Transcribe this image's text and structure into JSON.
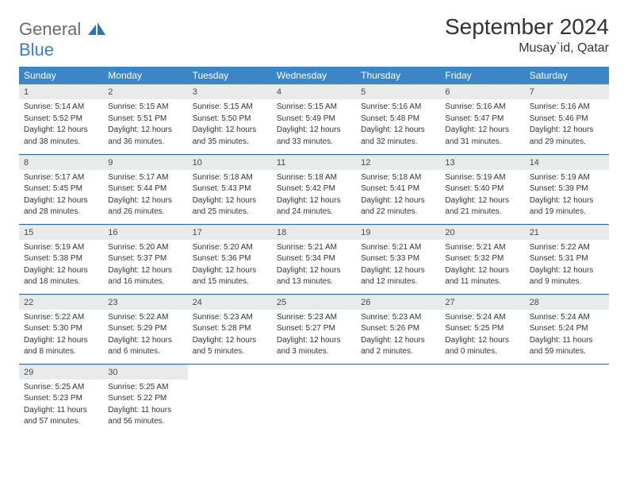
{
  "brand": {
    "text1": "General",
    "text2": "Blue"
  },
  "title": "September 2024",
  "location": "Musay`id, Qatar",
  "colors": {
    "header_bg": "#3b86c7",
    "header_text": "#ffffff",
    "daynum_bg": "#e9eaec",
    "row_border": "#3b6a94",
    "brand_gray": "#6b6b6b",
    "brand_blue": "#3b7fc4"
  },
  "weekdays": [
    "Sunday",
    "Monday",
    "Tuesday",
    "Wednesday",
    "Thursday",
    "Friday",
    "Saturday"
  ],
  "weeks": [
    [
      {
        "n": "1",
        "sr": "Sunrise: 5:14 AM",
        "ss": "Sunset: 5:52 PM",
        "dl1": "Daylight: 12 hours",
        "dl2": "and 38 minutes."
      },
      {
        "n": "2",
        "sr": "Sunrise: 5:15 AM",
        "ss": "Sunset: 5:51 PM",
        "dl1": "Daylight: 12 hours",
        "dl2": "and 36 minutes."
      },
      {
        "n": "3",
        "sr": "Sunrise: 5:15 AM",
        "ss": "Sunset: 5:50 PM",
        "dl1": "Daylight: 12 hours",
        "dl2": "and 35 minutes."
      },
      {
        "n": "4",
        "sr": "Sunrise: 5:15 AM",
        "ss": "Sunset: 5:49 PM",
        "dl1": "Daylight: 12 hours",
        "dl2": "and 33 minutes."
      },
      {
        "n": "5",
        "sr": "Sunrise: 5:16 AM",
        "ss": "Sunset: 5:48 PM",
        "dl1": "Daylight: 12 hours",
        "dl2": "and 32 minutes."
      },
      {
        "n": "6",
        "sr": "Sunrise: 5:16 AM",
        "ss": "Sunset: 5:47 PM",
        "dl1": "Daylight: 12 hours",
        "dl2": "and 31 minutes."
      },
      {
        "n": "7",
        "sr": "Sunrise: 5:16 AM",
        "ss": "Sunset: 5:46 PM",
        "dl1": "Daylight: 12 hours",
        "dl2": "and 29 minutes."
      }
    ],
    [
      {
        "n": "8",
        "sr": "Sunrise: 5:17 AM",
        "ss": "Sunset: 5:45 PM",
        "dl1": "Daylight: 12 hours",
        "dl2": "and 28 minutes."
      },
      {
        "n": "9",
        "sr": "Sunrise: 5:17 AM",
        "ss": "Sunset: 5:44 PM",
        "dl1": "Daylight: 12 hours",
        "dl2": "and 26 minutes."
      },
      {
        "n": "10",
        "sr": "Sunrise: 5:18 AM",
        "ss": "Sunset: 5:43 PM",
        "dl1": "Daylight: 12 hours",
        "dl2": "and 25 minutes."
      },
      {
        "n": "11",
        "sr": "Sunrise: 5:18 AM",
        "ss": "Sunset: 5:42 PM",
        "dl1": "Daylight: 12 hours",
        "dl2": "and 24 minutes."
      },
      {
        "n": "12",
        "sr": "Sunrise: 5:18 AM",
        "ss": "Sunset: 5:41 PM",
        "dl1": "Daylight: 12 hours",
        "dl2": "and 22 minutes."
      },
      {
        "n": "13",
        "sr": "Sunrise: 5:19 AM",
        "ss": "Sunset: 5:40 PM",
        "dl1": "Daylight: 12 hours",
        "dl2": "and 21 minutes."
      },
      {
        "n": "14",
        "sr": "Sunrise: 5:19 AM",
        "ss": "Sunset: 5:39 PM",
        "dl1": "Daylight: 12 hours",
        "dl2": "and 19 minutes."
      }
    ],
    [
      {
        "n": "15",
        "sr": "Sunrise: 5:19 AM",
        "ss": "Sunset: 5:38 PM",
        "dl1": "Daylight: 12 hours",
        "dl2": "and 18 minutes."
      },
      {
        "n": "16",
        "sr": "Sunrise: 5:20 AM",
        "ss": "Sunset: 5:37 PM",
        "dl1": "Daylight: 12 hours",
        "dl2": "and 16 minutes."
      },
      {
        "n": "17",
        "sr": "Sunrise: 5:20 AM",
        "ss": "Sunset: 5:36 PM",
        "dl1": "Daylight: 12 hours",
        "dl2": "and 15 minutes."
      },
      {
        "n": "18",
        "sr": "Sunrise: 5:21 AM",
        "ss": "Sunset: 5:34 PM",
        "dl1": "Daylight: 12 hours",
        "dl2": "and 13 minutes."
      },
      {
        "n": "19",
        "sr": "Sunrise: 5:21 AM",
        "ss": "Sunset: 5:33 PM",
        "dl1": "Daylight: 12 hours",
        "dl2": "and 12 minutes."
      },
      {
        "n": "20",
        "sr": "Sunrise: 5:21 AM",
        "ss": "Sunset: 5:32 PM",
        "dl1": "Daylight: 12 hours",
        "dl2": "and 11 minutes."
      },
      {
        "n": "21",
        "sr": "Sunrise: 5:22 AM",
        "ss": "Sunset: 5:31 PM",
        "dl1": "Daylight: 12 hours",
        "dl2": "and 9 minutes."
      }
    ],
    [
      {
        "n": "22",
        "sr": "Sunrise: 5:22 AM",
        "ss": "Sunset: 5:30 PM",
        "dl1": "Daylight: 12 hours",
        "dl2": "and 8 minutes."
      },
      {
        "n": "23",
        "sr": "Sunrise: 5:22 AM",
        "ss": "Sunset: 5:29 PM",
        "dl1": "Daylight: 12 hours",
        "dl2": "and 6 minutes."
      },
      {
        "n": "24",
        "sr": "Sunrise: 5:23 AM",
        "ss": "Sunset: 5:28 PM",
        "dl1": "Daylight: 12 hours",
        "dl2": "and 5 minutes."
      },
      {
        "n": "25",
        "sr": "Sunrise: 5:23 AM",
        "ss": "Sunset: 5:27 PM",
        "dl1": "Daylight: 12 hours",
        "dl2": "and 3 minutes."
      },
      {
        "n": "26",
        "sr": "Sunrise: 5:23 AM",
        "ss": "Sunset: 5:26 PM",
        "dl1": "Daylight: 12 hours",
        "dl2": "and 2 minutes."
      },
      {
        "n": "27",
        "sr": "Sunrise: 5:24 AM",
        "ss": "Sunset: 5:25 PM",
        "dl1": "Daylight: 12 hours",
        "dl2": "and 0 minutes."
      },
      {
        "n": "28",
        "sr": "Sunrise: 5:24 AM",
        "ss": "Sunset: 5:24 PM",
        "dl1": "Daylight: 11 hours",
        "dl2": "and 59 minutes."
      }
    ],
    [
      {
        "n": "29",
        "sr": "Sunrise: 5:25 AM",
        "ss": "Sunset: 5:23 PM",
        "dl1": "Daylight: 11 hours",
        "dl2": "and 57 minutes."
      },
      {
        "n": "30",
        "sr": "Sunrise: 5:25 AM",
        "ss": "Sunset: 5:22 PM",
        "dl1": "Daylight: 11 hours",
        "dl2": "and 56 minutes."
      },
      {
        "empty": true
      },
      {
        "empty": true
      },
      {
        "empty": true
      },
      {
        "empty": true
      },
      {
        "empty": true
      }
    ]
  ]
}
